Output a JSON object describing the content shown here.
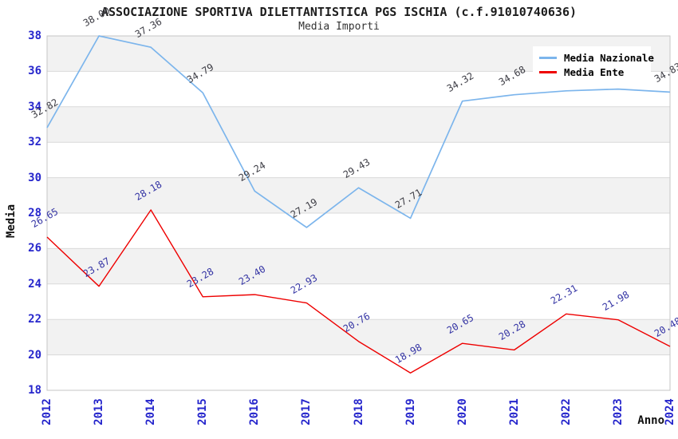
{
  "chart": {
    "title": "ASSOCIAZIONE SPORTIVA DILETTANTISTICA PGS ISCHIA (c.f.91010740636)",
    "subtitle": "Media Importi"
  },
  "chart_data": {
    "type": "line",
    "x": [
      2012,
      2013,
      2014,
      2015,
      2016,
      2017,
      2018,
      2019,
      2020,
      2021,
      2022,
      2023,
      2024
    ],
    "xlabel": "Anno",
    "ylabel": "Media",
    "ylim": [
      18,
      38
    ],
    "ytick_step": 2,
    "grid": true,
    "band_fill_alternating": true,
    "legend_position": "top-right",
    "series": [
      {
        "name": "Media Nazionale",
        "color": "#7cb5ec",
        "label_color": "#3c3c44",
        "values": [
          32.82,
          38.0,
          37.36,
          34.79,
          29.24,
          27.19,
          29.43,
          27.71,
          34.32,
          34.68,
          34.9,
          35.0,
          34.83
        ]
      },
      {
        "name": "Media Ente",
        "color": "#ee0000",
        "label_color": "#3434a4",
        "values": [
          26.65,
          23.87,
          28.18,
          23.28,
          23.4,
          22.93,
          20.76,
          18.98,
          20.65,
          20.28,
          22.31,
          21.98,
          20.48
        ]
      }
    ]
  },
  "style": {
    "band": "#f2f2f2",
    "grid": "#d9d9d9",
    "plot_border": "#c6c6c6",
    "tick_label_color": "#2626cc"
  }
}
